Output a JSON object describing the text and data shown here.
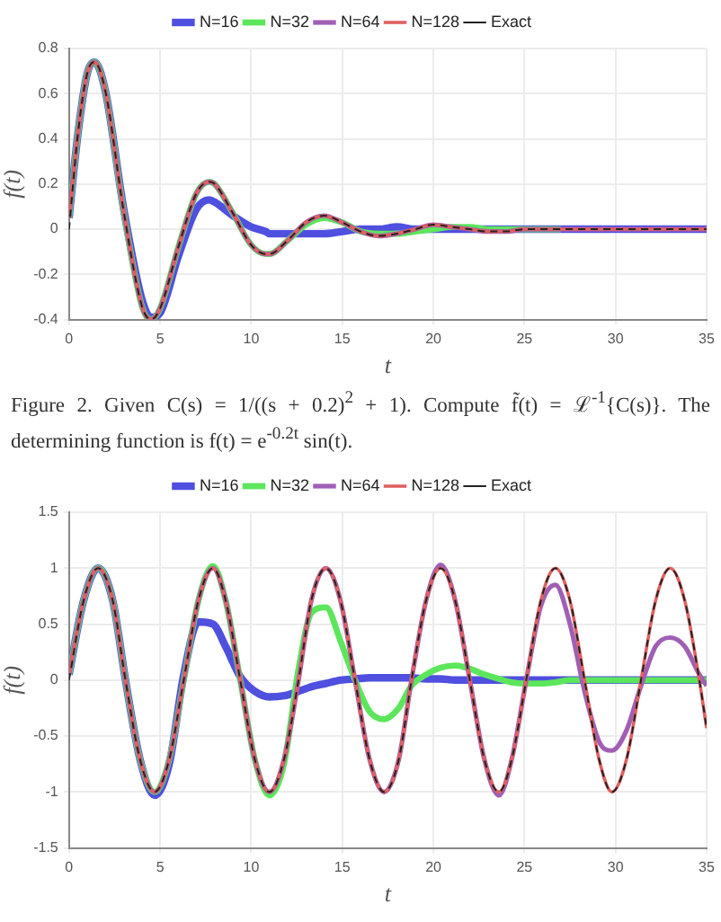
{
  "chart_data": [
    {
      "type": "line",
      "xlabel": "t",
      "ylabel": "f(t)",
      "x": [
        0,
        0.5,
        1,
        1.4,
        2,
        3,
        4,
        4.5,
        5,
        6,
        7,
        7.7,
        8,
        9,
        10,
        10.8,
        11,
        12,
        13,
        14,
        15,
        16,
        17,
        18,
        19,
        20,
        21,
        22,
        23,
        24,
        25,
        27,
        29,
        31,
        33,
        35
      ],
      "xlim": [
        0,
        35
      ],
      "xticks": [
        0,
        5,
        10,
        15,
        20,
        25,
        30,
        35
      ],
      "ylim": [
        -0.4,
        0.8
      ],
      "yticks": [
        -0.4,
        -0.2,
        0,
        0.2,
        0.4,
        0.6,
        0.8
      ],
      "grid": true,
      "legend": "top",
      "marker": "none",
      "annotations": [
        "Figure 2. Given C(s) = 1/((s + 0.2)$^{2}$ + 1). Compute f̃(t) = ℒ$^{-1}${C(s)}. The determining function is f(t) = e$^{-0.2t}$ sin(t)."
      ],
      "series": [
        {
          "name": "N=16",
          "color": "#4f4fe0",
          "line_style": "solid",
          "values": [
            0.05,
            0.43,
            0.69,
            0.74,
            0.61,
            0.09,
            -0.31,
            -0.39,
            -0.37,
            -0.12,
            0.09,
            0.13,
            0.12,
            0.06,
            0.01,
            -0.01,
            -0.02,
            -0.02,
            -0.02,
            -0.02,
            -0.01,
            0,
            0,
            0.01,
            0,
            0,
            0,
            0,
            0,
            0,
            0,
            0,
            0,
            0,
            0,
            0
          ]
        },
        {
          "name": "N=32",
          "color": "#5ce65c",
          "line_style": "solid",
          "values": [
            0.05,
            0.43,
            0.69,
            0.74,
            0.61,
            0.08,
            -0.34,
            -0.4,
            -0.35,
            -0.08,
            0.16,
            0.21,
            0.2,
            0.07,
            -0.07,
            -0.11,
            -0.11,
            -0.05,
            0.02,
            0.05,
            0.03,
            -0.01,
            -0.02,
            -0.02,
            -0.01,
            0,
            0.01,
            0.01,
            0,
            0,
            0,
            0,
            null,
            null,
            null,
            null
          ]
        },
        {
          "name": "N=64",
          "color": "#a05fb5",
          "line_style": "solid",
          "values": [
            0.05,
            0.43,
            0.69,
            0.74,
            0.61,
            0.08,
            -0.34,
            -0.4,
            -0.35,
            -0.08,
            0.16,
            0.21,
            0.2,
            0.07,
            -0.07,
            -0.11,
            -0.11,
            -0.05,
            0.03,
            0.06,
            0.03,
            -0.01,
            -0.03,
            -0.02,
            0,
            0.02,
            0.01,
            0,
            -0.01,
            -0.01,
            0,
            0,
            0,
            0,
            0,
            0
          ]
        },
        {
          "name": "N=128",
          "color": "#e06060",
          "line_style": "solid",
          "values": [
            0.05,
            0.43,
            0.69,
            0.74,
            0.61,
            0.08,
            -0.34,
            -0.4,
            -0.35,
            -0.08,
            0.16,
            0.21,
            0.2,
            0.07,
            -0.07,
            -0.11,
            -0.11,
            -0.05,
            0.03,
            0.06,
            0.03,
            -0.01,
            -0.03,
            -0.02,
            0,
            0.02,
            0.01,
            0,
            -0.01,
            -0.01,
            0,
            0,
            0,
            0,
            0,
            0
          ]
        },
        {
          "name": "Exact",
          "color": "#222222",
          "line_style": "dashed",
          "values": [
            0,
            0.43,
            0.69,
            0.74,
            0.61,
            0.08,
            -0.34,
            -0.4,
            -0.35,
            -0.08,
            0.16,
            0.21,
            0.2,
            0.07,
            -0.07,
            -0.11,
            -0.11,
            -0.05,
            0.03,
            0.06,
            0.03,
            -0.01,
            -0.03,
            -0.02,
            0,
            0.02,
            0.01,
            0,
            -0.01,
            -0.01,
            0,
            0,
            0,
            0,
            0,
            0
          ]
        }
      ]
    },
    {
      "type": "line",
      "xlabel": "t",
      "ylabel": "f(t)",
      "x": [
        0,
        0.8,
        1.6,
        2.4,
        3.1,
        3.9,
        4.7,
        5.5,
        6.3,
        7.1,
        7.9,
        8.6,
        9.4,
        10.2,
        11,
        11.8,
        12.6,
        13.3,
        14.1,
        14.9,
        15.7,
        16.5,
        17.3,
        18.1,
        18.8,
        19.6,
        20.4,
        21.2,
        22,
        22.8,
        23.6,
        24.3,
        25.1,
        25.9,
        26.7,
        27.5,
        28.3,
        29.1,
        29.8,
        30.6,
        31.4,
        32.2,
        33,
        33.8,
        34.6,
        35
      ],
      "xlim": [
        0,
        35
      ],
      "xticks": [
        0,
        5,
        10,
        15,
        20,
        25,
        30,
        35
      ],
      "ylim": [
        -1.5,
        1.5
      ],
      "yticks": [
        -1.5,
        -1,
        -0.5,
        0,
        0.5,
        1,
        1.5
      ],
      "grid": true,
      "legend": "top",
      "marker": "none",
      "series": [
        {
          "name": "N=16",
          "color": "#4f4fe0",
          "line_style": "solid",
          "values": [
            0.05,
            0.71,
            1,
            0.71,
            0,
            -0.71,
            -1.03,
            -0.75,
            0.05,
            0.52,
            0.5,
            0.3,
            0.03,
            -0.1,
            -0.15,
            -0.14,
            -0.1,
            -0.06,
            -0.03,
            0,
            0.01,
            0.02,
            0.02,
            0.02,
            0.02,
            0.01,
            0.01,
            0,
            0,
            0,
            0,
            0,
            0,
            0,
            0,
            0,
            0,
            0,
            0,
            0,
            0,
            0,
            0,
            0,
            0,
            0
          ]
        },
        {
          "name": "N=32",
          "color": "#5ce65c",
          "line_style": "solid",
          "values": [
            0.05,
            0.71,
            1,
            0.71,
            0,
            -0.71,
            -1,
            -0.71,
            0,
            0.71,
            1.02,
            0.71,
            0,
            -0.71,
            -1.03,
            -0.75,
            0.1,
            0.6,
            0.65,
            0.35,
            0,
            -0.28,
            -0.35,
            -0.25,
            -0.05,
            0.05,
            0.11,
            0.13,
            0.1,
            0.05,
            0.01,
            -0.02,
            -0.03,
            -0.03,
            -0.02,
            0,
            0,
            0,
            0,
            0,
            0,
            0,
            0,
            0,
            0,
            0
          ]
        },
        {
          "name": "N=64",
          "color": "#a05fb5",
          "line_style": "solid",
          "values": [
            0.05,
            0.71,
            1,
            0.71,
            0,
            -0.71,
            -1,
            -0.71,
            0,
            0.71,
            1,
            0.71,
            0,
            -0.71,
            -1,
            -0.71,
            0,
            0.71,
            1,
            0.71,
            0,
            -0.71,
            -1,
            -0.71,
            0,
            0.71,
            1.03,
            0.71,
            0,
            -0.71,
            -1.03,
            -0.71,
            0,
            0.66,
            0.85,
            0.5,
            -0.1,
            -0.55,
            -0.63,
            -0.45,
            -0.05,
            0.3,
            0.38,
            0.3,
            0.05,
            -0.05
          ]
        },
        {
          "name": "N=128",
          "color": "#e06060",
          "line_style": "solid",
          "values": [
            0.05,
            0.71,
            1,
            0.71,
            0,
            -0.71,
            -1,
            -0.71,
            0,
            0.71,
            1,
            0.71,
            0,
            -0.71,
            -1,
            -0.71,
            0,
            0.71,
            1,
            0.71,
            0,
            -0.71,
            -1,
            -0.71,
            0,
            0.71,
            1,
            0.71,
            0,
            -0.71,
            -1,
            -0.71,
            0,
            0.71,
            1,
            0.71,
            0,
            -0.71,
            -1,
            -0.71,
            0,
            0.71,
            1,
            0.71,
            0,
            -0.43
          ]
        },
        {
          "name": "Exact",
          "color": "#222222",
          "line_style": "dashed",
          "values": [
            0,
            0.71,
            1,
            0.71,
            0,
            -0.71,
            -1,
            -0.71,
            0,
            0.71,
            1,
            0.71,
            0,
            -0.71,
            -1,
            -0.71,
            0,
            0.71,
            1,
            0.71,
            0,
            -0.71,
            -1,
            -0.71,
            0,
            0.71,
            1,
            0.71,
            0,
            -0.71,
            -1,
            -0.71,
            0,
            0.71,
            1,
            0.71,
            0,
            -0.71,
            -1,
            -0.71,
            0,
            0.71,
            1,
            0.71,
            0,
            -0.43
          ]
        }
      ]
    }
  ]
}
